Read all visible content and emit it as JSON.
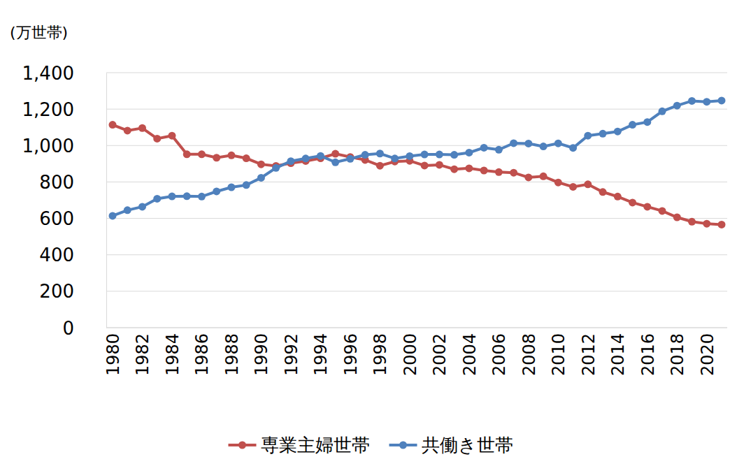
{
  "chart_data": {
    "type": "line",
    "ylabel": "(万世帯)",
    "categories": [
      "1980",
      null,
      "1982",
      null,
      "1984",
      null,
      "1986",
      null,
      "1988",
      null,
      "1990",
      null,
      "1992",
      null,
      "1994",
      null,
      "1996",
      null,
      "1998",
      null,
      "2000",
      null,
      "2002",
      null,
      "2004",
      null,
      "2006",
      null,
      "2008",
      null,
      "2010",
      null,
      "2012",
      null,
      "2014",
      null,
      "2016",
      null,
      "2018",
      null,
      "2020",
      null
    ],
    "series": [
      {
        "name": "専業主婦世帯",
        "color": "#c0504d",
        "marker": "circle",
        "values": [
          1114,
          1082,
          1096,
          1038,
          1054,
          952,
          952,
          933,
          946,
          930,
          897,
          888,
          903,
          915,
          930,
          955,
          937,
          921,
          889,
          912,
          916,
          890,
          894,
          870,
          875,
          863,
          854,
          851,
          825,
          831,
          797,
          773,
          787,
          745,
          720,
          687,
          664,
          641,
          606,
          582,
          571,
          566
        ]
      },
      {
        "name": "共働き世帯",
        "color": "#4f81bd",
        "marker": "circle",
        "values": [
          614,
          645,
          664,
          708,
          721,
          722,
          720,
          748,
          771,
          783,
          823,
          877,
          914,
          929,
          943,
          908,
          927,
          949,
          956,
          929,
          942,
          951,
          951,
          949,
          961,
          988,
          977,
          1013,
          1011,
          995,
          1012,
          987,
          1054,
          1065,
          1077,
          1114,
          1129,
          1188,
          1219,
          1245,
          1240,
          1247
        ]
      }
    ],
    "ylim": [
      0,
      1400
    ],
    "yticks": [
      0,
      200,
      400,
      600,
      800,
      {
        "value": 1000,
        "label": "1,000"
      },
      {
        "value": 1200,
        "label": "1,200"
      },
      {
        "value": 1400,
        "label": "1,400"
      }
    ],
    "grid": true,
    "legend": "bottom"
  }
}
